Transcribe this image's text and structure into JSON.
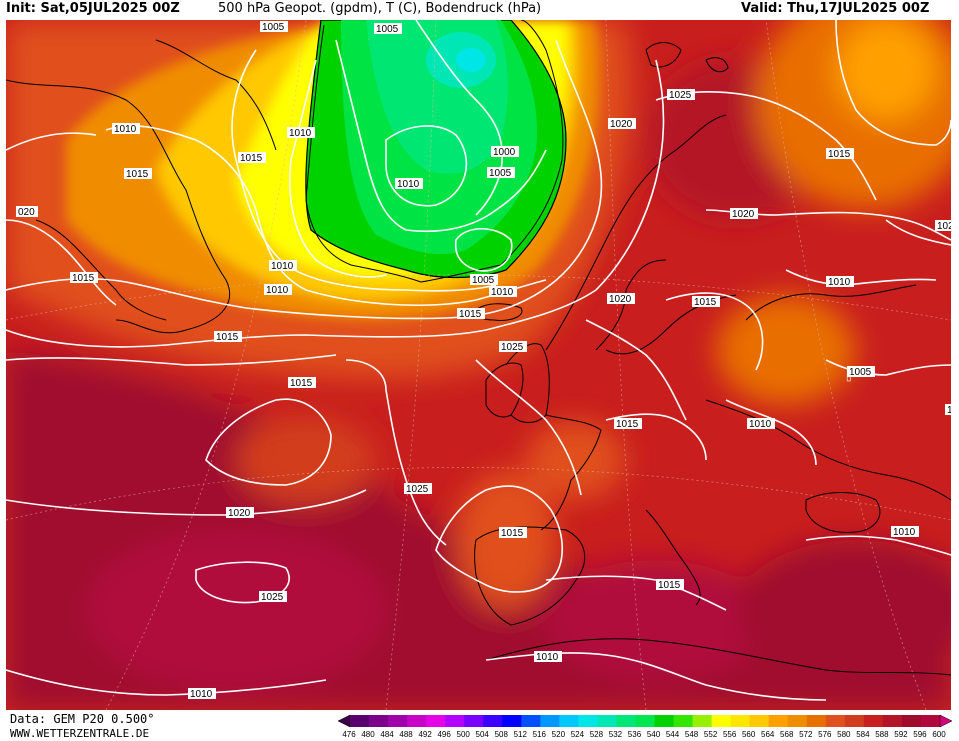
{
  "header": {
    "init_label": "Init: Sat,05JUL2025 00Z",
    "parameters": "500 hPa Geopot. (gpdm), T (C), Bodendruck (hPa)",
    "valid_label": "Valid: Thu,17JUL2025 00Z"
  },
  "footer": {
    "data_source": "Data: GEM P20 0.500°",
    "website": "WWW.WETTERZENTRALE.DE"
  },
  "colors": {
    "green_low": "#00d200",
    "cyan": "#00e8c8",
    "yellow": "#ffe600",
    "orange": "#f08c00",
    "orange_red": "#e0501e",
    "red": "#c81e1e",
    "dark_red": "#a00a2d",
    "magenta_red": "#b0083c",
    "isobar": "#ffffff",
    "coastline": "#000000"
  },
  "scale": {
    "ticks": [
      "476",
      "480",
      "484",
      "488",
      "492",
      "496",
      "500",
      "504",
      "508",
      "512",
      "516",
      "520",
      "524",
      "528",
      "532",
      "536",
      "540",
      "544",
      "548",
      "552",
      "556",
      "560",
      "564",
      "568",
      "572",
      "576",
      "580",
      "584",
      "588",
      "592",
      "596",
      "600"
    ],
    "colors": [
      "#3c0046",
      "#5a006e",
      "#7d008c",
      "#a000aa",
      "#c800c8",
      "#e600e6",
      "#b400ff",
      "#7800ff",
      "#3c00ff",
      "#0000ff",
      "#0050ff",
      "#0096ff",
      "#00c8ff",
      "#00e6e6",
      "#00e6b4",
      "#00e678",
      "#00e650",
      "#00d200",
      "#32e600",
      "#96f000",
      "#ffff00",
      "#ffe600",
      "#ffc800",
      "#ffa000",
      "#f08c00",
      "#e86e00",
      "#e0501e",
      "#d23c1e",
      "#c81e1e",
      "#b41428",
      "#a00a2d",
      "#b0083c",
      "#d2007a"
    ]
  },
  "isobar_labels": [
    {
      "text": "1005",
      "id": "l1"
    },
    {
      "text": "1005",
      "id": "l2"
    },
    {
      "text": "1010",
      "id": "l3"
    },
    {
      "text": "1010",
      "id": "l4"
    },
    {
      "text": "1015",
      "id": "l5"
    },
    {
      "text": "1015",
      "id": "l6"
    },
    {
      "text": "020",
      "id": "l7"
    },
    {
      "text": "1015",
      "id": "l8"
    },
    {
      "text": "1010",
      "id": "l9"
    },
    {
      "text": "1010",
      "id": "l10"
    },
    {
      "text": "1015",
      "id": "l11"
    },
    {
      "text": "1015",
      "id": "l12"
    },
    {
      "text": "1015",
      "id": "l13"
    },
    {
      "text": "1000",
      "id": "l14"
    },
    {
      "text": "1005",
      "id": "l15"
    },
    {
      "text": "1010",
      "id": "l16"
    },
    {
      "text": "1005",
      "id": "l17"
    },
    {
      "text": "1010",
      "id": "l18"
    },
    {
      "text": "1025",
      "id": "l19"
    },
    {
      "text": "1020",
      "id": "l20"
    },
    {
      "text": "1015",
      "id": "l21"
    },
    {
      "text": "1025",
      "id": "l22"
    },
    {
      "text": "1020",
      "id": "l23"
    },
    {
      "text": "1015",
      "id": "l24"
    },
    {
      "text": "1020",
      "id": "l25"
    },
    {
      "text": "1025",
      "id": "l26"
    },
    {
      "text": "1015",
      "id": "l27"
    },
    {
      "text": "1010",
      "id": "l28"
    },
    {
      "text": "1005",
      "id": "l29"
    },
    {
      "text": "1010",
      "id": "l30"
    },
    {
      "text": "1010",
      "id": "l31"
    },
    {
      "text": "1010",
      "id": "l32"
    },
    {
      "text": "1015",
      "id": "l33"
    },
    {
      "text": "1025",
      "id": "l34"
    },
    {
      "text": "1020",
      "id": "l35"
    },
    {
      "text": "1025",
      "id": "l36"
    },
    {
      "text": "1015",
      "id": "l37"
    },
    {
      "text": "1010",
      "id": "l38"
    },
    {
      "text": "1010",
      "id": "l39"
    },
    {
      "text": "1020",
      "id": "l40"
    },
    {
      "text": "1",
      "id": "l41"
    }
  ]
}
